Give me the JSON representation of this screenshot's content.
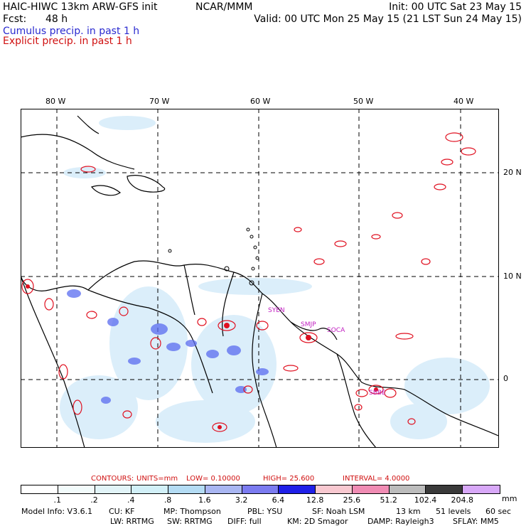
{
  "header": {
    "model_line": "HAIC-HIWC 13km ARW-GFS init",
    "org": "NCAR/MMM",
    "init": "Init: 00 UTC Sat 23 May 15",
    "fcst_label": "Fcst:",
    "fcst_value": "48 h",
    "valid": "Valid: 00 UTC Mon 25 May 15 (21 LST Sun 24 May 15)",
    "cumulus": "Cumulus precip. in past 1 h",
    "explicit": "Explicit precip. in past 1 h"
  },
  "map": {
    "longitude_labels": [
      "80 W",
      "70 W",
      "60 W",
      "50 W",
      "40 W"
    ],
    "latitude_labels": [
      "20 N",
      "10 N",
      "0"
    ],
    "stations": [
      "SYEN",
      "SMJP",
      "SOCA",
      "SBBE"
    ],
    "colors": {
      "cumulus": "#4455ee",
      "explicit": "#e01020",
      "coast": "#000000",
      "grid": "#000000"
    }
  },
  "contours": {
    "label": "CONTOURS:",
    "units": "UNITS=mm",
    "low": "LOW= 0.10000",
    "high": "HIGH= 25.600",
    "interval": "INTERVAL= 4.0000"
  },
  "colorbar": {
    "unit": "mm",
    "ticks": [
      ".1",
      ".2",
      ".4",
      ".8",
      "1.6",
      "3.2",
      "6.4",
      "12.8",
      "25.6",
      "51.2",
      "102.4",
      "204.8"
    ],
    "colors": [
      "#ffffff",
      "#f2fbfb",
      "#e2f4f8",
      "#d2f0f8",
      "#b4dcf4",
      "#a9b6f2",
      "#7b7bf0",
      "#1f1fe8",
      "#f8c8d0",
      "#f08cb4",
      "#bcbcbc",
      "#3a3a3a",
      "#d8a8f8"
    ]
  },
  "model_info": {
    "line1": [
      "Model Info: V3.6.1",
      "CU: KF",
      "MP: Thompson",
      "PBL: YSU",
      "SF: Noah LSM",
      "13 km",
      "51 levels",
      "60 sec"
    ],
    "line2": [
      "LW: RRTMG",
      "SW: RRTMG",
      "DIFF: full",
      "KM: 2D Smagor",
      "DAMP: Rayleigh3",
      "SFLAY: MM5"
    ]
  }
}
